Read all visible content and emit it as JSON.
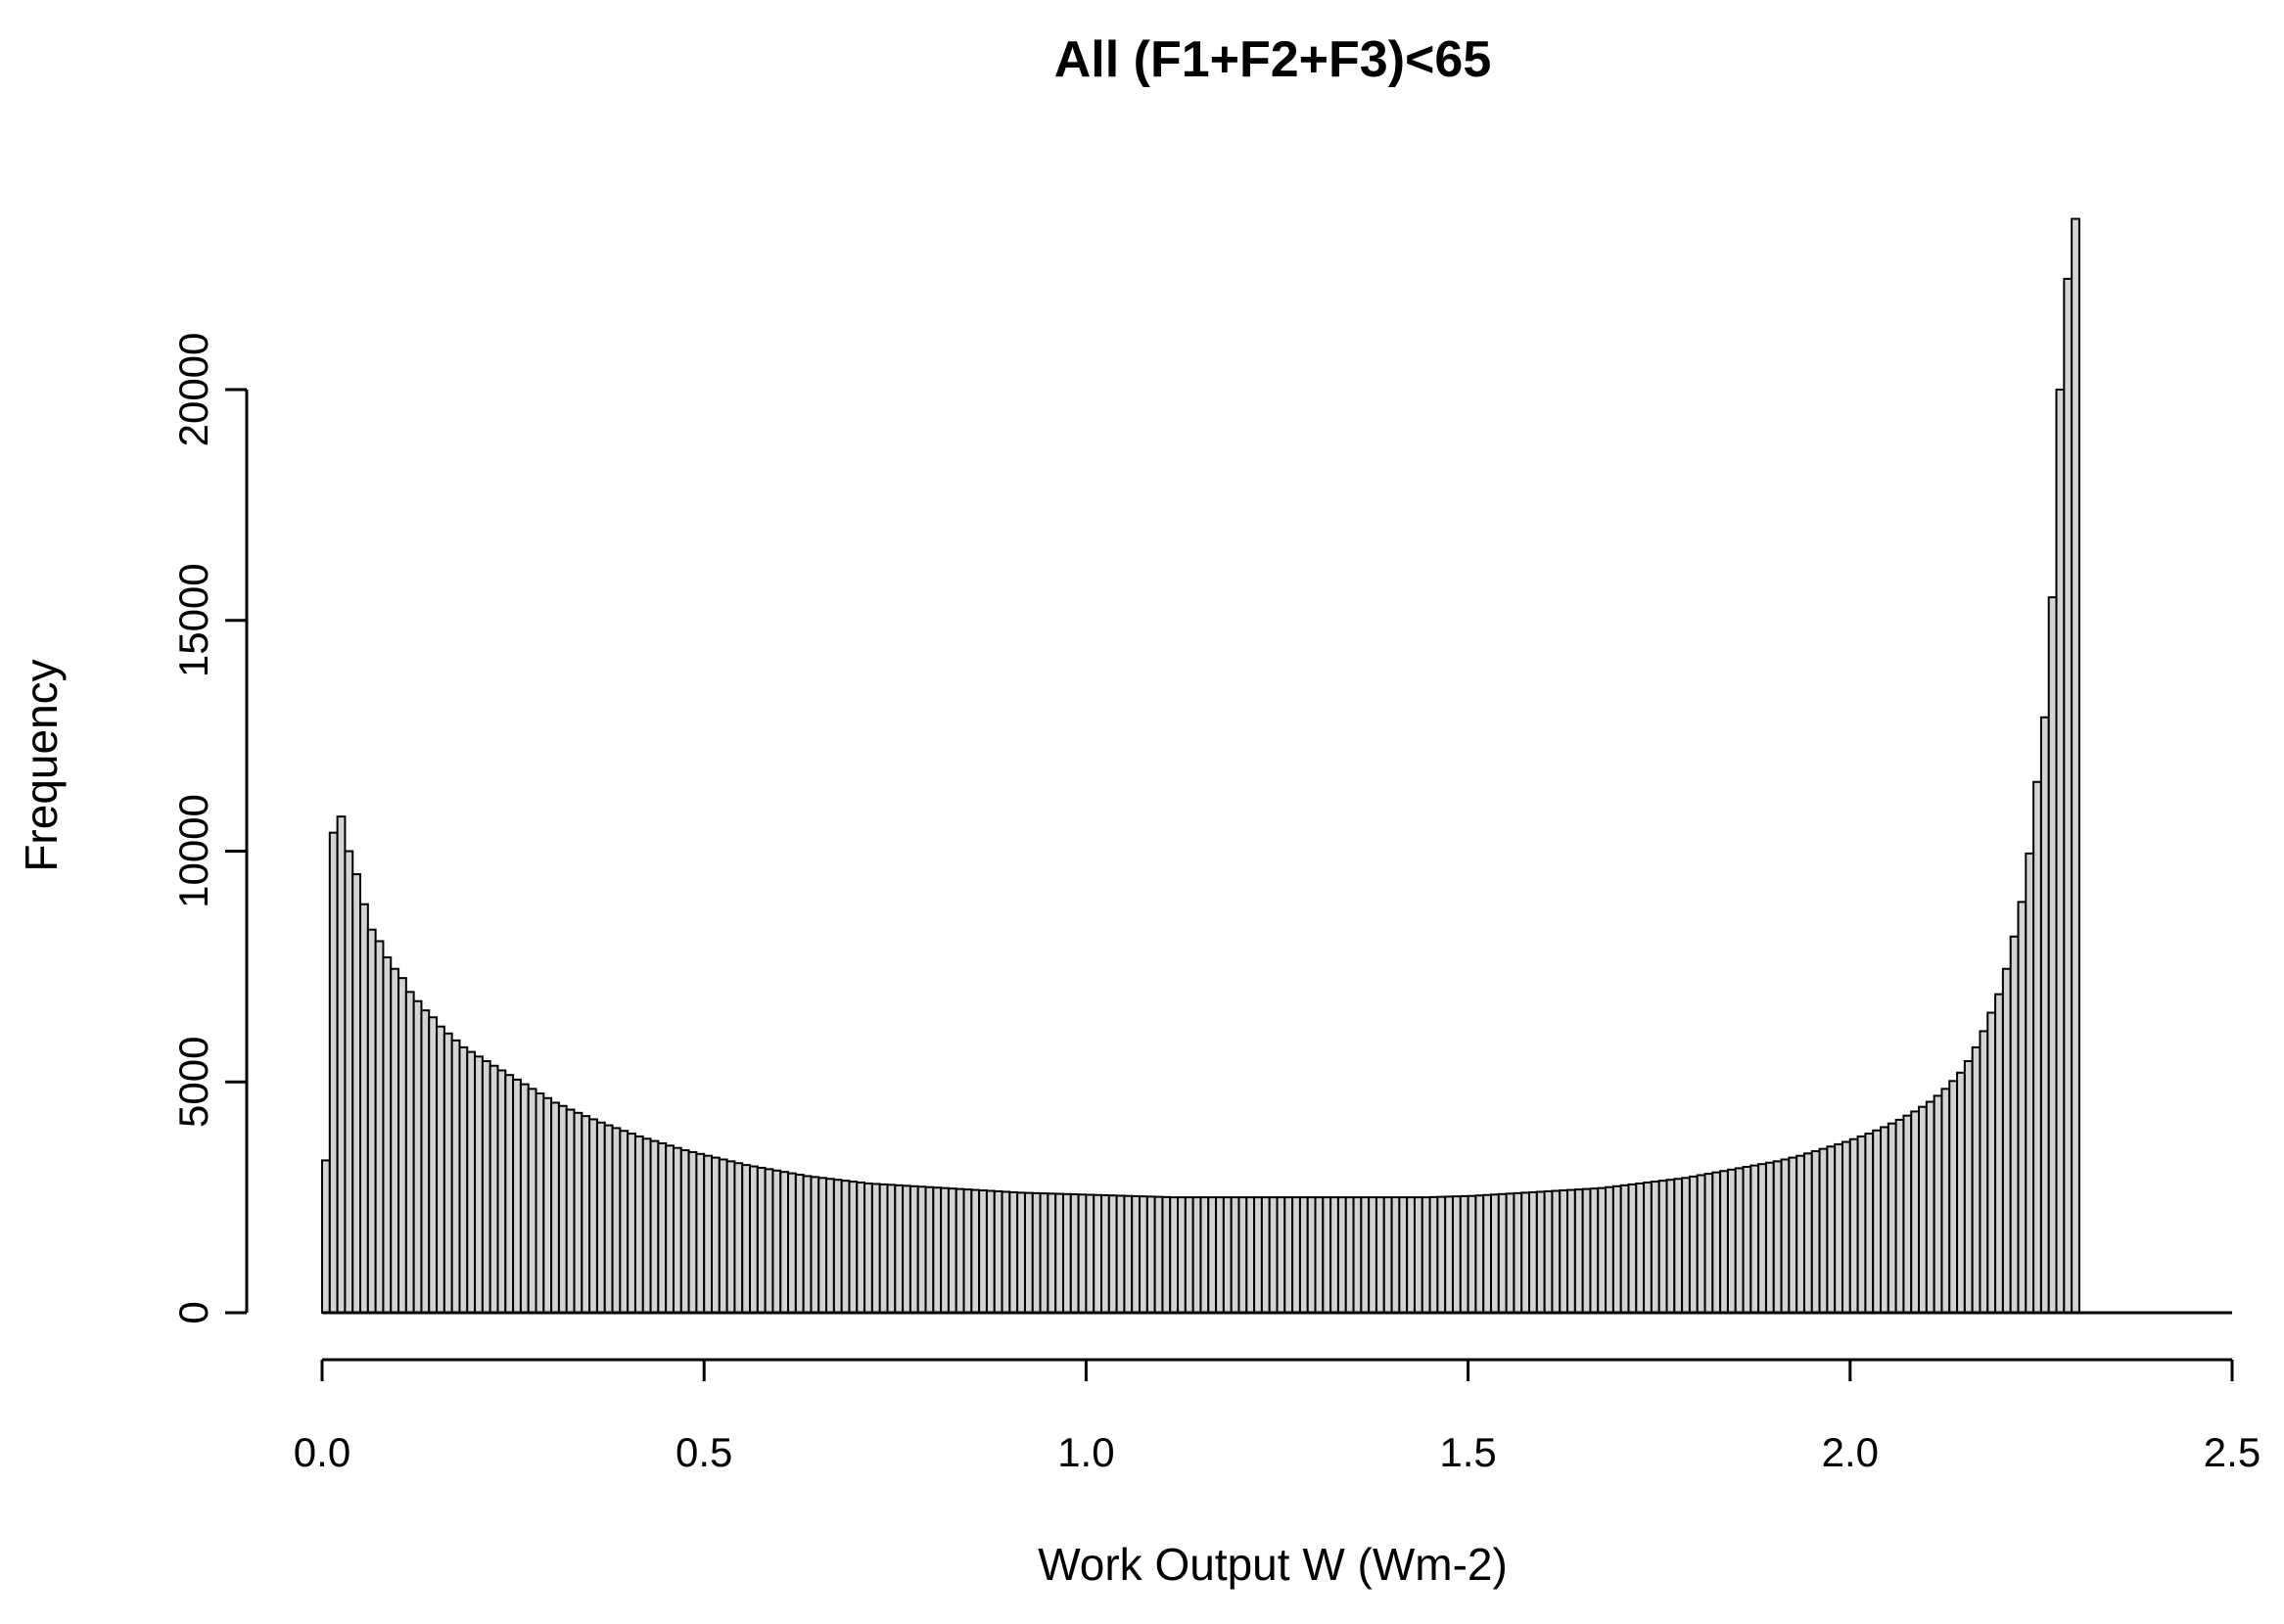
{
  "chart_data": {
    "type": "bar",
    "title": "All (F1+F2+F3)<65",
    "xlabel": "Work Output W (Wm-2)",
    "ylabel": "Frequency",
    "xlim": [
      0,
      2.5
    ],
    "ylim": [
      0,
      20000
    ],
    "x_ticks": [
      "0.0",
      "0.5",
      "1.0",
      "1.5",
      "2.0",
      "2.5"
    ],
    "y_ticks": [
      "0",
      "5000",
      "10000",
      "15000",
      "20000"
    ],
    "bin_width": 0.01,
    "bin_start": 0,
    "grid": false,
    "values": [
      3300,
      10400,
      10750,
      10000,
      9500,
      8850,
      8300,
      8050,
      7700,
      7450,
      7250,
      6950,
      6750,
      6550,
      6400,
      6200,
      6050,
      5900,
      5750,
      5650,
      5550,
      5450,
      5350,
      5250,
      5150,
      5050,
      4950,
      4850,
      4750,
      4650,
      4550,
      4480,
      4400,
      4330,
      4260,
      4190,
      4120,
      4060,
      4000,
      3940,
      3880,
      3820,
      3770,
      3720,
      3670,
      3620,
      3570,
      3520,
      3480,
      3440,
      3400,
      3360,
      3320,
      3280,
      3240,
      3200,
      3170,
      3140,
      3110,
      3080,
      3050,
      3020,
      2990,
      2960,
      2940,
      2920,
      2900,
      2880,
      2860,
      2840,
      2820,
      2800,
      2790,
      2780,
      2770,
      2760,
      2750,
      2740,
      2730,
      2720,
      2710,
      2700,
      2690,
      2680,
      2670,
      2660,
      2650,
      2640,
      2630,
      2620,
      2610,
      2600,
      2595,
      2590,
      2585,
      2580,
      2575,
      2570,
      2565,
      2560,
      2555,
      2550,
      2545,
      2540,
      2535,
      2530,
      2525,
      2520,
      2515,
      2510,
      2505,
      2500,
      2500,
      2500,
      2500,
      2500,
      2500,
      2500,
      2500,
      2500,
      2500,
      2500,
      2500,
      2500,
      2500,
      2500,
      2500,
      2500,
      2500,
      2500,
      2500,
      2500,
      2500,
      2500,
      2500,
      2500,
      2500,
      2500,
      2500,
      2500,
      2500,
      2500,
      2500,
      2500,
      2500,
      2505,
      2510,
      2515,
      2520,
      2525,
      2530,
      2540,
      2550,
      2560,
      2570,
      2580,
      2590,
      2600,
      2610,
      2620,
      2630,
      2640,
      2650,
      2660,
      2670,
      2680,
      2690,
      2700,
      2720,
      2740,
      2760,
      2780,
      2800,
      2820,
      2840,
      2860,
      2880,
      2900,
      2920,
      2950,
      2980,
      3010,
      3040,
      3070,
      3100,
      3130,
      3160,
      3190,
      3220,
      3250,
      3280,
      3320,
      3360,
      3400,
      3450,
      3500,
      3550,
      3600,
      3650,
      3700,
      3760,
      3820,
      3880,
      3950,
      4020,
      4100,
      4180,
      4270,
      4360,
      4460,
      4570,
      4700,
      4850,
      5020,
      5200,
      5450,
      5750,
      6100,
      6500,
      6900,
      7450,
      8150,
      8900,
      9950,
      11500,
      12900,
      15500,
      20000,
      22400,
      23700
    ]
  }
}
